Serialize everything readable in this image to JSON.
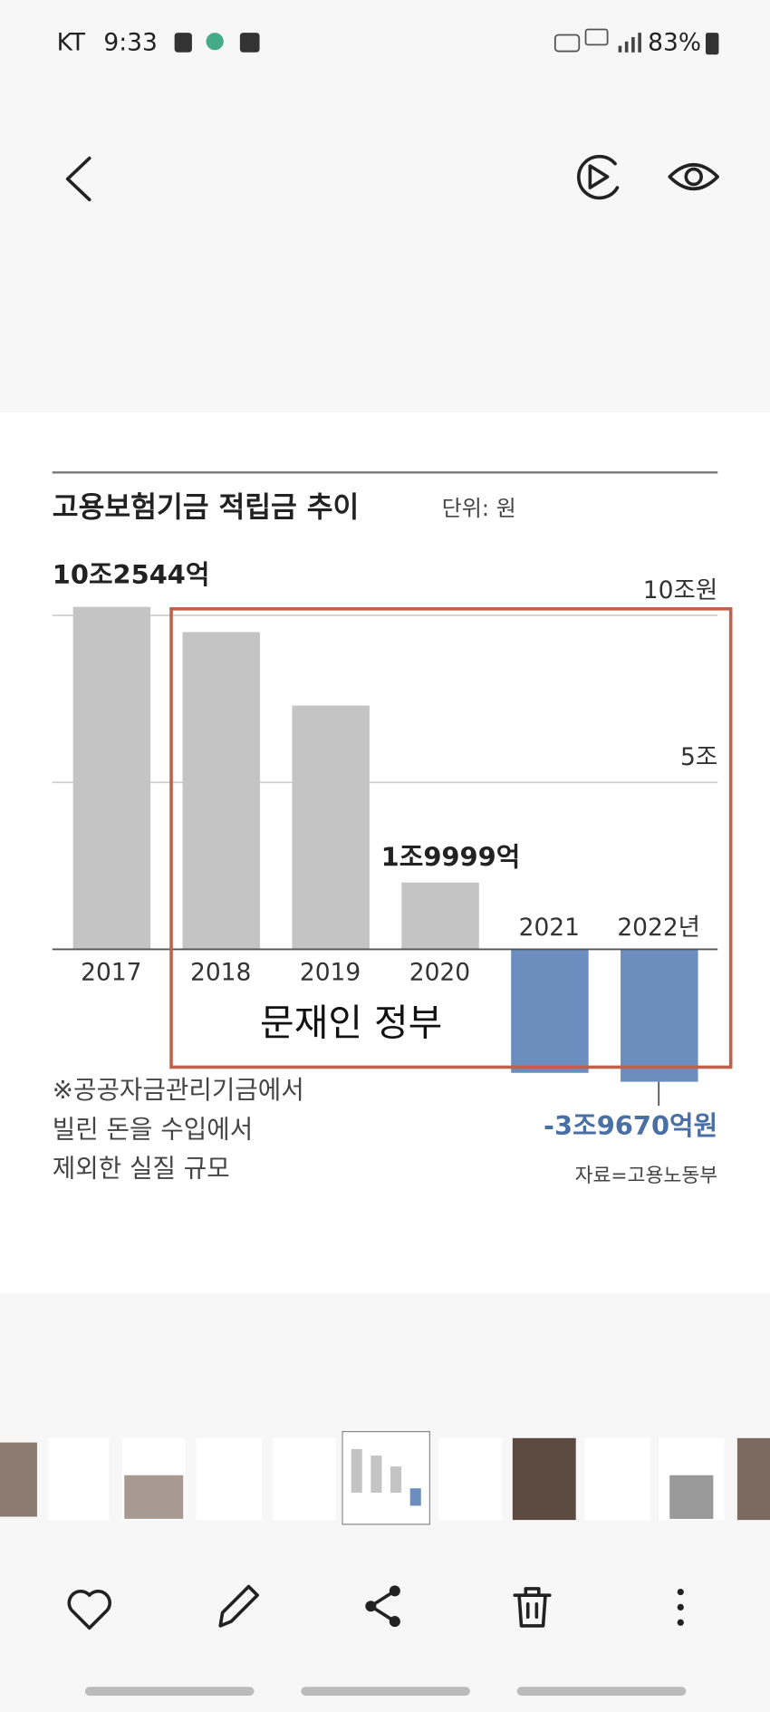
{
  "status_bar": {
    "carrier": "KT",
    "time": "9:33",
    "battery": "83%"
  },
  "chart_data": {
    "type": "bar",
    "title": "고용보험기금 적립금 추이",
    "unit": "단위: 원",
    "categories": [
      "2017",
      "2018",
      "2019",
      "2020",
      "2021",
      "2022년"
    ],
    "values": [
      10.2544,
      9.5,
      7.3,
      1.9999,
      -3.7,
      -3.967
    ],
    "value_labels": [
      "10조2544억",
      null,
      null,
      "1조9999억",
      null,
      "-3조9670억원"
    ],
    "colors": [
      "#c4c4c4",
      "#c4c4c4",
      "#c4c4c4",
      "#c4c4c4",
      "#6b8ebf",
      "#6b8ebf"
    ],
    "ylim": [
      -4.3,
      10.8
    ],
    "yticks": [
      {
        "value": 5,
        "label": "5조"
      },
      {
        "value": 10,
        "label": "10조원"
      }
    ],
    "grid": true,
    "box_label": "문재인 정부",
    "note": [
      "※공공자금관리기금에서",
      "빌린 돈을 수입에서",
      "제외한 실질 규모"
    ],
    "source": "자료=고용노동부"
  }
}
